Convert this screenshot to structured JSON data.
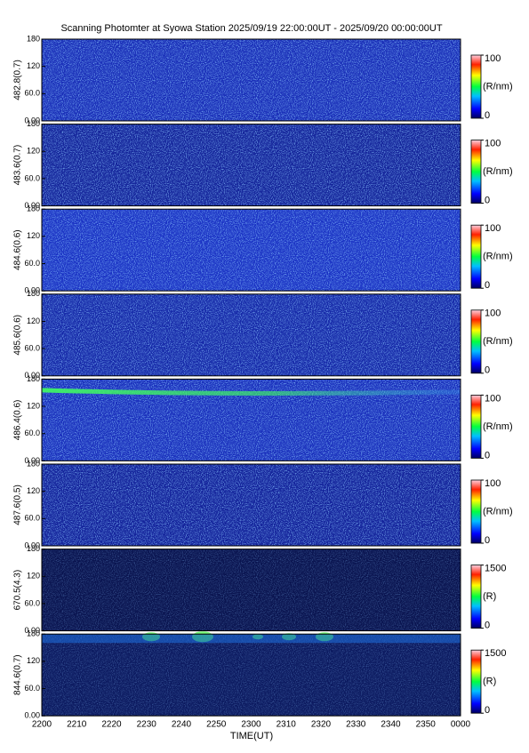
{
  "title": "Scanning Photomter at Syowa Station 2025/09/19 22:00:00UT - 2025/09/20 00:00:00UT",
  "xlabel": "TIME(UT)",
  "x_categories": [
    "2200",
    "2210",
    "2220",
    "2230",
    "2240",
    "2250",
    "2300",
    "2310",
    "2320",
    "2330",
    "2340",
    "2350",
    "0000"
  ],
  "chart_data": [
    {
      "type": "heatmap",
      "ylabel": "482.8(0.7)",
      "color": "#1a2fb8",
      "ylim": [
        0,
        180
      ],
      "yticks": [
        {
          "value": 0,
          "label": "0.00"
        },
        {
          "value": 60,
          "label": "60.0"
        },
        120,
        180
      ],
      "colorbar": {
        "label": "(R/nm)",
        "lim": [
          0,
          100
        ],
        "ticks": [
          0,
          100
        ]
      }
    },
    {
      "type": "heatmap",
      "ylabel": "483.6(0.7)",
      "color": "#14249a",
      "ylim": [
        0,
        180
      ],
      "yticks": [
        {
          "value": 0,
          "label": "0.00"
        },
        {
          "value": 60,
          "label": "60.0"
        },
        120,
        180
      ],
      "colorbar": {
        "label": "(R/nm)",
        "lim": [
          0,
          100
        ],
        "ticks": [
          0,
          100
        ]
      }
    },
    {
      "type": "heatmap",
      "ylabel": "484.6(0.6)",
      "color": "#1b33c4",
      "ylim": [
        0,
        180
      ],
      "yticks": [
        {
          "value": 0,
          "label": "0.00"
        },
        {
          "value": 60,
          "label": "60.0"
        },
        120,
        180
      ],
      "colorbar": {
        "label": "(R/nm)",
        "lim": [
          0,
          100
        ],
        "ticks": [
          0,
          100
        ]
      }
    },
    {
      "type": "heatmap",
      "ylabel": "485.6(0.6)",
      "color": "#1629a8",
      "ylim": [
        0,
        180
      ],
      "yticks": [
        {
          "value": 0,
          "label": "0.00"
        },
        {
          "value": 60,
          "label": "60.0"
        },
        120,
        180
      ],
      "colorbar": {
        "label": "(R/nm)",
        "lim": [
          0,
          100
        ],
        "ticks": [
          0,
          100
        ]
      }
    },
    {
      "type": "heatmap",
      "ylabel": "486.4(0.6)",
      "color": "#1a30bc",
      "ylim": [
        0,
        180
      ],
      "yticks": [
        {
          "value": 0,
          "label": "0.00"
        },
        {
          "value": 60,
          "label": "60.0"
        },
        120,
        180
      ],
      "colorbar": {
        "label": "(R/nm)",
        "lim": [
          0,
          100
        ],
        "ticks": [
          0,
          100
        ]
      }
    },
    {
      "type": "heatmap",
      "ylabel": "487.6(0.5)",
      "color": "#13229a",
      "ylim": [
        0,
        180
      ],
      "yticks": [
        {
          "value": 0,
          "label": "0.00"
        },
        {
          "value": 60,
          "label": "60.0"
        },
        120,
        180
      ],
      "colorbar": {
        "label": "(R/nm)",
        "lim": [
          0,
          100
        ],
        "ticks": [
          0,
          100
        ]
      }
    },
    {
      "type": "heatmap",
      "ylabel": "670.5(4.3)",
      "color": "#0a1450",
      "ylim": [
        0,
        180
      ],
      "yticks": [
        {
          "value": 0,
          "label": "0.00"
        },
        {
          "value": 60,
          "label": "60.0"
        },
        120,
        180
      ],
      "colorbar": {
        "label": "(R)",
        "lim": [
          0,
          1500
        ],
        "ticks": [
          0,
          1500
        ]
      }
    },
    {
      "type": "heatmap",
      "ylabel": "844.6(0.7)",
      "color": "#0c1a60",
      "ylim": [
        0,
        180
      ],
      "yticks": [
        {
          "value": 0,
          "label": "0.00"
        },
        {
          "value": 60,
          "label": "60.0"
        },
        120,
        180
      ],
      "colorbar": {
        "label": "(R)",
        "lim": [
          0,
          1500
        ],
        "ticks": [
          0,
          1500
        ]
      }
    }
  ]
}
